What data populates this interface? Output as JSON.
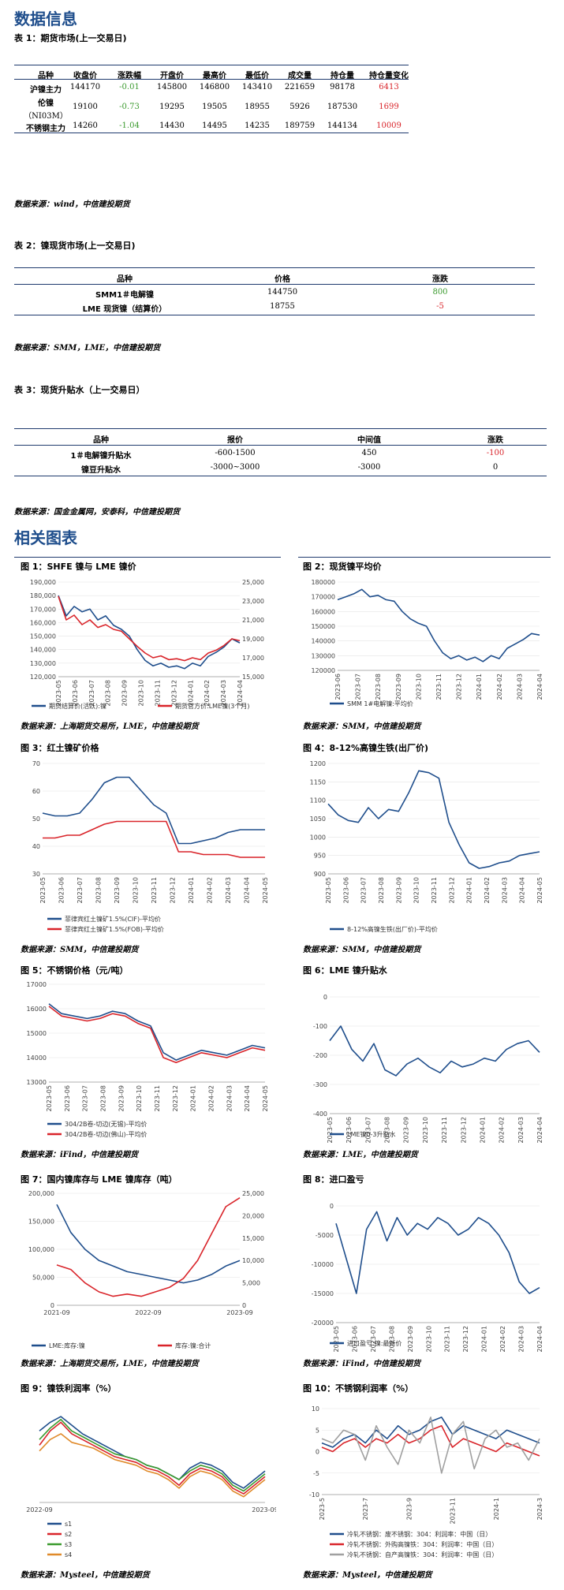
{
  "section1_title": "数据信息",
  "table1": {
    "caption": "表 1：期货市场(上一交易日)",
    "headers": [
      "品种",
      "收盘价",
      "涨跌幅",
      "开盘价",
      "最高价",
      "最低价",
      "成交量",
      "持仓量",
      "持仓量变化"
    ],
    "rows": [
      {
        "name": "沪镍主力",
        "name2": "",
        "close": "144170",
        "chg": "-0.01",
        "open": "145800",
        "high": "146800",
        "low": "143410",
        "vol": "221659",
        "oi": "98178",
        "oichg": "6413"
      },
      {
        "name": "伦镍",
        "name2": "（NI03M）",
        "close": "19100",
        "chg": "-0.73",
        "open": "19295",
        "high": "19505",
        "low": "18955",
        "vol": "5926",
        "oi": "187530",
        "oichg": "1699"
      },
      {
        "name": "不锈钢主力",
        "name2": "",
        "close": "14260",
        "chg": "-1.04",
        "open": "14430",
        "high": "14495",
        "low": "14235",
        "vol": "189759",
        "oi": "144134",
        "oichg": "10009"
      }
    ],
    "source": "数据来源：wind，中信建投期货"
  },
  "table2": {
    "caption": "表 2：镍现货市场(上一交易日)",
    "headers": [
      "品种",
      "价格",
      "涨跌"
    ],
    "rows": [
      {
        "name": "SMM1＃电解镍",
        "price": "144750",
        "chg": "800"
      },
      {
        "name": "LME 现货镍（结算价）",
        "price": "18755",
        "chg": "-5"
      }
    ],
    "source": "数据来源：SMM，LME，中信建投期货"
  },
  "table3": {
    "caption": "表 3：现货升贴水（上一交易日）",
    "headers": [
      "品种",
      "报价",
      "中间值",
      "涨跌"
    ],
    "rows": [
      {
        "name": "1＃电解镍升贴水",
        "quote": "-600-1500",
        "mid": "450",
        "chg": "-100"
      },
      {
        "name": "镍豆升贴水",
        "quote": "-3000~3000",
        "mid": "-3000",
        "chg": "0"
      }
    ],
    "source": "数据来源：国金金属网，安泰科，中信建投期货"
  },
  "section2_title": "相关图表",
  "colors": {
    "blue": "#1f4e8c",
    "red": "#d9242a",
    "green": "#3a9a2d",
    "gray": "#a0a0a0"
  },
  "figures": {
    "f1": {
      "caption": "图 1：SHFE 镍与 LME 镍价",
      "source": "数据来源：上海期货交易所，LME，中信建投期货",
      "chart_data": {
        "type": "line",
        "left_ticks": [
          "190,000",
          "180,000",
          "170,000",
          "160,000",
          "150,000",
          "140,000",
          "130,000",
          "120,000"
        ],
        "right_ticks": [
          "25,000",
          "23,000",
          "21,000",
          "19,000",
          "17,000",
          "15,000"
        ],
        "x_ticks": [
          "2023-05",
          "2023-06",
          "2023-07",
          "2023-08",
          "2023-09",
          "2023-10",
          "2023-11",
          "2023-12",
          "2024-01",
          "2024-02",
          "2024-03",
          "2024-04"
        ],
        "ylim": [
          120000,
          190000
        ],
        "y2lim": [
          15000,
          25000
        ],
        "series": [
          {
            "name": "期货结算价(活跃):镍",
            "values": [
              180000,
              165000,
              172000,
              168000,
              170000,
              162000,
              165000,
              158000,
              155000,
              150000,
              140000,
              132000,
              128000,
              130000,
              127000,
              128000,
              126000,
              130000,
              128000,
              135000,
              138000,
              142000,
              148000,
              145000
            ]
          },
          {
            "name": "期货官方价:LME镍(3个月)",
            "values": [
              23500,
              21000,
              21500,
              20500,
              21000,
              20200,
              20500,
              20000,
              19800,
              19000,
              18200,
              17500,
              17000,
              17200,
              16800,
              16900,
              16700,
              17000,
              16800,
              17500,
              17800,
              18300,
              19000,
              18800
            ]
          }
        ]
      }
    },
    "f2": {
      "caption": "图 2：现货镍平均价",
      "source": "数据来源：SMM，中信建投期货",
      "chart_data": {
        "type": "line",
        "y_ticks": [
          "180000",
          "170000",
          "160000",
          "150000",
          "140000",
          "130000",
          "120000"
        ],
        "x_ticks": [
          "2023-06",
          "2023-07",
          "2023-08",
          "2023-09",
          "2023-10",
          "2023-11",
          "2023-12",
          "2024-01",
          "2024-02",
          "2024-03",
          "2024-04"
        ],
        "ylim": [
          120000,
          180000
        ],
        "series": [
          {
            "name": "SMM 1#电解镍:平均价",
            "values": [
              168000,
              170000,
              172000,
              175000,
              170000,
              171000,
              168000,
              167000,
              160000,
              155000,
              152000,
              150000,
              140000,
              132000,
              128000,
              130000,
              127000,
              129000,
              126000,
              130000,
              128000,
              135000,
              138000,
              141000,
              145000,
              144000
            ]
          }
        ]
      }
    },
    "f3": {
      "caption": "图 3：红土镍矿价格",
      "source": "数据来源：SMM，中信建投期货",
      "chart_data": {
        "type": "line",
        "y_ticks": [
          "70",
          "60",
          "50",
          "40",
          "30"
        ],
        "x_ticks": [
          "2023-05",
          "2023-06",
          "2023-07",
          "2023-08",
          "2023-09",
          "2023-10",
          "2023-11",
          "2023-12",
          "2024-01",
          "2024-02",
          "2024-03",
          "2024-04",
          "2024-05"
        ],
        "ylim": [
          30,
          70
        ],
        "series": [
          {
            "name": "菲律宾红土镍矿1.5%(CIF)-平均价",
            "values": [
              52,
              51,
              51,
              52,
              57,
              63,
              65,
              65,
              60,
              55,
              52,
              41,
              41,
              42,
              43,
              45,
              46,
              46,
              46
            ]
          },
          {
            "name": "菲律宾红土镍矿1.5%(FOB)-平均价",
            "values": [
              43,
              43,
              44,
              44,
              46,
              48,
              49,
              49,
              49,
              49,
              49,
              38,
              38,
              37,
              37,
              37,
              36,
              36,
              36
            ]
          }
        ]
      }
    },
    "f4": {
      "caption": "图 4：8-12%高镍生铁(出厂价)",
      "source": "数据来源：SMM，中信建投期货",
      "chart_data": {
        "type": "line",
        "y_ticks": [
          "1200",
          "1150",
          "1100",
          "1050",
          "1000",
          "950",
          "900"
        ],
        "x_ticks": [
          "2023-05",
          "2023-06",
          "2023-07",
          "2023-08",
          "2023-09",
          "2023-10",
          "2023-11",
          "2023-12",
          "2024-01",
          "2024-02",
          "2024-03",
          "2024-04",
          "2024-05"
        ],
        "ylim": [
          900,
          1200
        ],
        "series": [
          {
            "name": "8-12%高镍生铁(出厂价)-平均价",
            "values": [
              1090,
              1060,
              1045,
              1040,
              1080,
              1050,
              1075,
              1070,
              1120,
              1180,
              1175,
              1160,
              1040,
              980,
              930,
              915,
              920,
              930,
              935,
              950,
              955,
              960
            ]
          }
        ]
      }
    },
    "f5": {
      "caption": "图 5：不锈钢价格（元/吨）",
      "source": "数据来源：iFind，中信建投期货",
      "chart_data": {
        "type": "line",
        "y_ticks": [
          "17000",
          "16000",
          "15000",
          "14000",
          "13000"
        ],
        "x_ticks": [
          "2023-05",
          "2023-06",
          "2023-07",
          "2023-08",
          "2023-09",
          "2023-10",
          "2023-11",
          "2023-12",
          "2024-01",
          "2024-02",
          "2024-03",
          "2024-04",
          "2024-05"
        ],
        "ylim": [
          13000,
          17000
        ],
        "series": [
          {
            "name": "304/2B卷-切边(无锡)-平均价",
            "values": [
              16200,
              15800,
              15700,
              15600,
              15700,
              15900,
              15800,
              15500,
              15300,
              14200,
              13900,
              14100,
              14300,
              14200,
              14100,
              14300,
              14500,
              14400
            ]
          },
          {
            "name": "304/2B卷-切边(佛山)-平均价",
            "values": [
              16100,
              15700,
              15600,
              15500,
              15600,
              15800,
              15700,
              15400,
              15200,
              14000,
              13800,
              14000,
              14200,
              14100,
              14000,
              14200,
              14400,
              14300
            ]
          }
        ]
      }
    },
    "f6": {
      "caption": "图 6：LME 镍升贴水",
      "source": "数据来源：LME，中信建投期货",
      "chart_data": {
        "type": "line",
        "y_ticks": [
          "0",
          "-100",
          "-200",
          "-300",
          "-400"
        ],
        "x_ticks": [
          "2023-05",
          "2023-06",
          "2023-07",
          "2023-08",
          "2023-09",
          "2023-10",
          "2023-11",
          "2023-12",
          "2024-01",
          "2024-02",
          "2024-03",
          "2024-04"
        ],
        "ylim": [
          -400,
          0
        ],
        "series": [
          {
            "name": "LME镍0-3升贴水",
            "values": [
              -150,
              -100,
              -180,
              -220,
              -160,
              -250,
              -270,
              -230,
              -210,
              -240,
              -260,
              -220,
              -240,
              -230,
              -210,
              -220,
              -180,
              -160,
              -150,
              -190
            ]
          }
        ]
      }
    },
    "f7": {
      "caption": "图 7：国内镍库存与 LME 镍库存（吨）",
      "source": "数据来源：上海期货交易所，LME，中信建投期货",
      "chart_data": {
        "type": "line",
        "left_ticks": [
          "200,000",
          "150,000",
          "100,000",
          "50,000",
          "0"
        ],
        "right_ticks": [
          "25,000",
          "20,000",
          "15,000",
          "10,000",
          "5,000",
          "0"
        ],
        "x_ticks": [
          "2021-09",
          "2022-09",
          "2023-09"
        ],
        "ylim": [
          0,
          200000
        ],
        "y2lim": [
          0,
          25000
        ],
        "series": [
          {
            "name": "LME:库存:镍",
            "values": [
              180000,
              130000,
              100000,
              80000,
              70000,
              60000,
              55000,
              50000,
              45000,
              40000,
              45000,
              55000,
              70000,
              80000
            ]
          },
          {
            "name": "库存:镍:合计",
            "values": [
              9000,
              8000,
              5000,
              3000,
              2000,
              2500,
              2000,
              3000,
              4000,
              6000,
              10000,
              16000,
              22000,
              24000
            ]
          }
        ]
      }
    },
    "f8": {
      "caption": "图 8：进口盈亏",
      "source": "数据来源：iFind，中信建投期货",
      "chart_data": {
        "type": "line",
        "y_ticks": [
          "0",
          "-5000",
          "-10000",
          "-15000",
          "-20000"
        ],
        "x_ticks": [
          "2023-05",
          "2023-06",
          "2023-07",
          "2023-08",
          "2023-09",
          "2023-10",
          "2023-11",
          "2023-12",
          "2024-01",
          "2024-02",
          "2024-03",
          "2024-04"
        ],
        "ylim": [
          -20000,
          0
        ],
        "series": [
          {
            "name": "进口盈亏:镍:最新价",
            "values": [
              -3000,
              -9000,
              -15000,
              -4000,
              -1000,
              -6000,
              -2000,
              -5000,
              -3000,
              -4000,
              -2000,
              -3000,
              -5000,
              -4000,
              -2000,
              -3000,
              -5000,
              -8000,
              -13000,
              -15000,
              -14000
            ]
          }
        ]
      }
    },
    "f9": {
      "caption": "图 9：镍铁利润率（%）",
      "source": "数据来源：Mysteel，中信建投期货",
      "chart_data": {
        "type": "line",
        "y_ticks": [],
        "x_ticks": [
          "2022-09",
          "2023-09"
        ],
        "ylim": [
          -10,
          25
        ],
        "series": [
          {
            "name": "s1",
            "values": [
              15,
              18,
              20,
              17,
              14,
              12,
              10,
              8,
              6,
              5,
              3,
              2,
              0,
              -2,
              2,
              4,
              3,
              1,
              -3,
              -5,
              -2,
              1
            ]
          },
          {
            "name": "s2",
            "values": [
              10,
              15,
              18,
              14,
              12,
              10,
              8,
              6,
              5,
              4,
              2,
              1,
              -1,
              -4,
              0,
              2,
              1,
              -1,
              -5,
              -7,
              -4,
              -1
            ]
          },
          {
            "name": "s3",
            "values": [
              12,
              16,
              19,
              15,
              13,
              11,
              9,
              7,
              6,
              5,
              3,
              2,
              0,
              -2,
              1,
              3,
              2,
              0,
              -4,
              -6,
              -3,
              0
            ]
          },
          {
            "name": "s4",
            "values": [
              8,
              12,
              14,
              11,
              10,
              9,
              7,
              5,
              4,
              3,
              1,
              0,
              -2,
              -5,
              -1,
              1,
              0,
              -2,
              -6,
              -8,
              -5,
              -2
            ]
          }
        ]
      }
    },
    "f10": {
      "caption": "图 10：不锈钢利润率（%）",
      "source": "数据来源：Mysteel，中信建投期货",
      "chart_data": {
        "type": "line",
        "y_ticks": [
          "10",
          "5",
          "0",
          "-5",
          "-10"
        ],
        "x_ticks": [
          "2023-5",
          "2023-7",
          "2023-9",
          "2023-11",
          "2024-1",
          "2024-3"
        ],
        "ylim": [
          -10,
          10
        ],
        "series": [
          {
            "name": "冷轧不锈钢：废不锈钢：304：利润率：中国（日）",
            "values": [
              2,
              1,
              3,
              4,
              2,
              5,
              3,
              6,
              4,
              5,
              7,
              8,
              4,
              6,
              5,
              4,
              3,
              5,
              4,
              3,
              2
            ]
          },
          {
            "name": "冷轧不锈钢：外购高镍铁：304：利润率：中国（日）",
            "values": [
              1,
              0,
              2,
              3,
              1,
              3,
              2,
              4,
              2,
              3,
              5,
              6,
              1,
              3,
              2,
              1,
              0,
              2,
              1,
              0,
              -1
            ]
          },
          {
            "name": "冷轧不锈钢：自产高镍铁：304：利润率：中国（日）",
            "values": [
              3,
              2,
              5,
              4,
              -2,
              6,
              1,
              -3,
              5,
              2,
              8,
              -5,
              4,
              7,
              -4,
              3,
              5,
              1,
              2,
              -2,
              3
            ]
          }
        ]
      }
    }
  }
}
